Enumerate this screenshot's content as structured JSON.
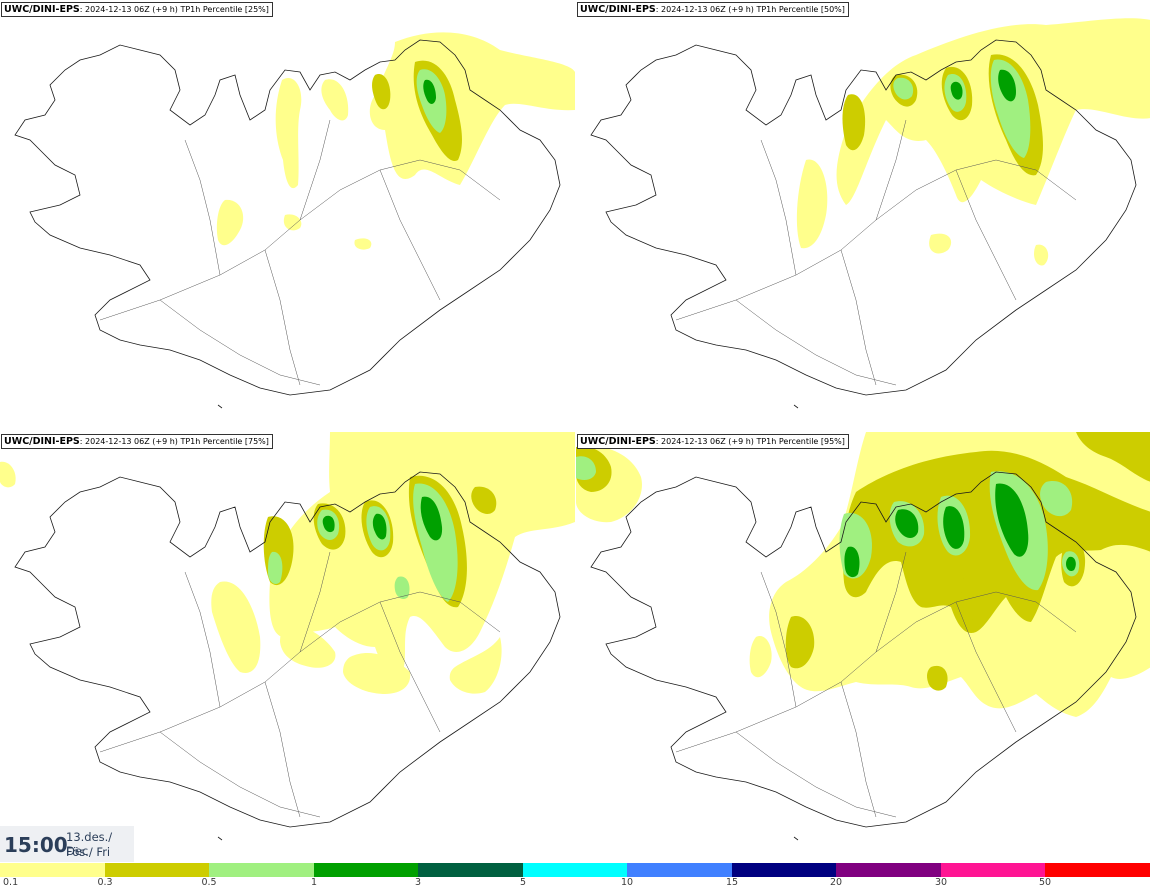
{
  "panels": [
    {
      "model": "UWC/DINI-EPS",
      "run": ": 2024-12-13 06Z (+9 h)",
      "field": "TP1h Percentile [25%]"
    },
    {
      "model": "UWC/DINI-EPS",
      "run": ": 2024-12-13 06Z (+9 h)",
      "field": "TP1h Percentile [50%]"
    },
    {
      "model": "UWC/DINI-EPS",
      "run": ": 2024-12-13 06Z (+9 h)",
      "field": "TP1h Percentile [75%]"
    },
    {
      "model": "UWC/DINI-EPS",
      "run": ": 2024-12-13 06Z (+9 h)",
      "field": "TP1h Percentile [95%]"
    }
  ],
  "valid_time": {
    "time": "15:00",
    "date": "13.des./ Dec",
    "weekday": "Fös./ Fri"
  },
  "legend": {
    "ticks": [
      "0.1",
      "0.3",
      "0.5",
      "1",
      "3",
      "5",
      "10",
      "15",
      "20",
      "30",
      "50"
    ],
    "colors": [
      "#ffff8c",
      "#cdcd00",
      "#a0f080",
      "#00a000",
      "#006040",
      "#00ffff",
      "#4080ff",
      "#000080",
      "#800080",
      "#ff1493",
      "#ff0000"
    ]
  },
  "map_colors": {
    "land_outline": "#1a1a1a",
    "roads": "#555555"
  }
}
